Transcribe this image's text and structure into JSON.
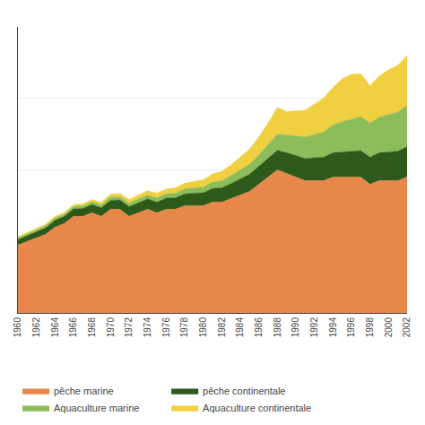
{
  "chart_data": {
    "type": "area",
    "stacked": true,
    "x": [
      1960,
      1961,
      1962,
      1963,
      1964,
      1965,
      1966,
      1967,
      1968,
      1969,
      1970,
      1971,
      1972,
      1973,
      1974,
      1975,
      1976,
      1977,
      1978,
      1979,
      1980,
      1981,
      1982,
      1983,
      1984,
      1985,
      1986,
      1987,
      1988,
      1989,
      1990,
      1991,
      1992,
      1993,
      1994,
      1995,
      1996,
      1997,
      1998,
      1999,
      2000,
      2001,
      2002
    ],
    "series": [
      {
        "name": "pêche marine",
        "color": "#E8874A",
        "values": [
          19,
          20,
          21,
          22,
          24,
          25,
          27,
          27,
          28,
          27,
          29,
          29,
          27,
          28,
          29,
          28,
          29,
          29,
          30,
          30,
          30,
          31,
          31,
          32,
          33,
          34,
          36,
          38,
          40,
          39,
          38,
          37,
          37,
          37,
          38,
          38,
          38,
          38,
          36,
          37,
          37,
          37,
          38
        ]
      },
      {
        "name": "pêche continentale",
        "color": "#2D5A1B",
        "values": [
          1.5,
          1.6,
          1.7,
          1.8,
          1.9,
          2.0,
          2.1,
          2.2,
          2.3,
          2.4,
          2.5,
          2.6,
          2.7,
          2.8,
          2.9,
          3.0,
          3.1,
          3.2,
          3.3,
          3.5,
          3.6,
          3.8,
          4.0,
          4.2,
          4.5,
          4.8,
          5.0,
          5.3,
          5.5,
          5.8,
          6.0,
          6.2,
          6.4,
          6.6,
          6.8,
          7.0,
          7.2,
          7.4,
          7.6,
          7.8,
          8.0,
          8.2,
          8.5
        ]
      },
      {
        "name": "Aquaculture marine",
        "color": "#8DBD5A",
        "values": [
          0.5,
          0.5,
          0.5,
          0.6,
          0.6,
          0.6,
          0.7,
          0.7,
          0.8,
          0.8,
          0.9,
          0.9,
          1.0,
          1.0,
          1.1,
          1.2,
          1.2,
          1.3,
          1.4,
          1.5,
          1.6,
          1.8,
          2.0,
          2.2,
          2.5,
          2.8,
          3.2,
          3.8,
          4.5,
          5.0,
          5.5,
          6.0,
          6.5,
          7.0,
          7.8,
          8.5,
          9.0,
          9.5,
          9.5,
          10.0,
          10.5,
          11.0,
          11.5
        ]
      },
      {
        "name": "Aquaculture continentale",
        "color": "#F0D040",
        "values": [
          0.3,
          0.3,
          0.4,
          0.4,
          0.5,
          0.5,
          0.5,
          0.6,
          0.6,
          0.7,
          0.8,
          0.9,
          1.0,
          1.1,
          1.2,
          1.3,
          1.4,
          1.5,
          1.6,
          1.8,
          2.0,
          2.3,
          2.6,
          3.0,
          3.5,
          4.2,
          5.0,
          6.0,
          7.5,
          6.5,
          7.0,
          7.5,
          8.5,
          9.5,
          10.5,
          12.0,
          12.5,
          12.0,
          10.5,
          11.5,
          12.5,
          13.0,
          14.0
        ]
      }
    ],
    "xlim": [
      1960,
      2002
    ],
    "xticks": [
      1960,
      1962,
      1964,
      1966,
      1968,
      1970,
      1972,
      1974,
      1976,
      1978,
      1980,
      1982,
      1984,
      1986,
      1988,
      1990,
      1992,
      1994,
      1996,
      1998,
      2000,
      2002
    ],
    "ylim": [
      0,
      80
    ],
    "yticks": [
      20,
      40,
      60,
      80
    ],
    "tick_labels": "x",
    "grid": true,
    "legend": "bottom"
  }
}
